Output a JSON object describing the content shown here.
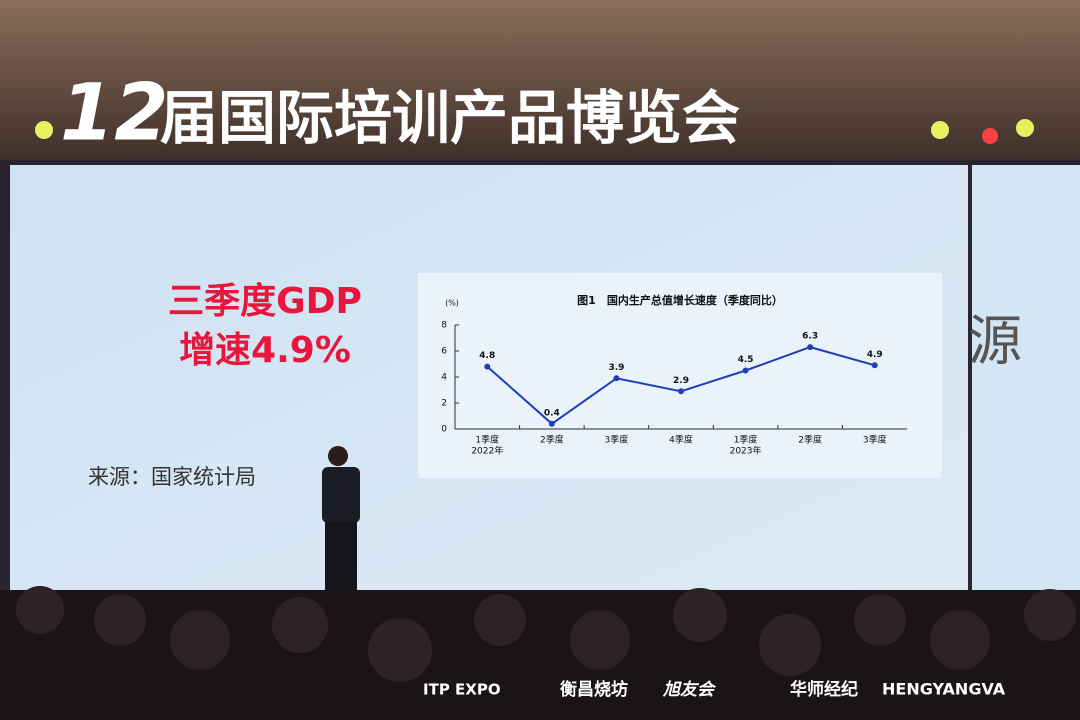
{
  "banner": {
    "number": "12",
    "text": "届国际培训产品博览会"
  },
  "slide": {
    "headline_1": "三季度GDP",
    "headline_2": "增速4.9%",
    "source": "来源：国家统计局",
    "side_text": "源"
  },
  "chart_data": {
    "type": "line",
    "title": "图1　国内生产总值增长速度（季度同比）",
    "y_unit": "(%)",
    "categories": [
      "1季度",
      "2季度",
      "3季度",
      "4季度",
      "1季度",
      "2季度",
      "3季度"
    ],
    "x_sublabels": [
      "2022年",
      null,
      null,
      null,
      "2023年",
      null,
      null
    ],
    "series": [
      {
        "color": "#1f3fb8",
        "values": [
          4.8,
          0.4,
          3.9,
          2.9,
          4.5,
          6.3,
          4.9
        ]
      }
    ],
    "ylim": [
      0,
      8
    ],
    "yticks": [
      0,
      2,
      4,
      6,
      8
    ]
  },
  "sponsors": [
    "ITP EXPO",
    "衡昌烧坊",
    "旭友会",
    "华师经纪",
    "HENGYANGVA"
  ]
}
